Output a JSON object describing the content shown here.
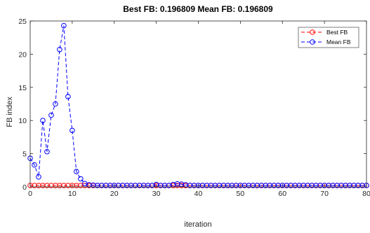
{
  "chart_data": {
    "type": "line",
    "title": "Best FB: 0.196809 Mean FB: 0.196809",
    "xlabel": "iteration",
    "ylabel": "FB index",
    "xlim": [
      0,
      80
    ],
    "ylim": [
      0,
      25
    ],
    "xticks": [
      0,
      10,
      20,
      30,
      40,
      50,
      60,
      70,
      80
    ],
    "yticks": [
      0,
      5,
      10,
      15,
      20,
      25
    ],
    "xtick_labels": [
      "0",
      "10",
      "20",
      "30",
      "40",
      "50",
      "60",
      "70",
      "80"
    ],
    "ytick_labels": [
      "0",
      "5",
      "10",
      "15",
      "20",
      "25"
    ],
    "grid": false,
    "legend_position": "top-right",
    "legend": [
      "Best FB",
      "Mean FB"
    ],
    "series": [
      {
        "name": "Best FB",
        "color": "#ff0000",
        "line_style": "dashed",
        "marker": "circle",
        "x": [
          0,
          1,
          2,
          3,
          4,
          5,
          6,
          7,
          8,
          9,
          10,
          11,
          12,
          13,
          14,
          15,
          16,
          17,
          18,
          19,
          20,
          21,
          22,
          23,
          24,
          25,
          26,
          27,
          28,
          29,
          30,
          31,
          32,
          33,
          34,
          35,
          36,
          37,
          38,
          39,
          40,
          41,
          42,
          43,
          44,
          45,
          46,
          47,
          48,
          49,
          50,
          51,
          52,
          53,
          54,
          55,
          56,
          57,
          58,
          59,
          60,
          61,
          62,
          63,
          64,
          65,
          66,
          67,
          68,
          69,
          70,
          71,
          72,
          73,
          74,
          75,
          76,
          77,
          78,
          79,
          80
        ],
        "y": [
          0.197,
          0.197,
          0.197,
          0.197,
          0.197,
          0.197,
          0.197,
          0.197,
          0.197,
          0.197,
          0.197,
          0.197,
          0.197,
          0.197,
          0.197,
          0.197,
          0.197,
          0.197,
          0.197,
          0.197,
          0.197,
          0.197,
          0.197,
          0.197,
          0.197,
          0.197,
          0.197,
          0.197,
          0.197,
          0.197,
          0.197,
          0.197,
          0.197,
          0.197,
          0.197,
          0.197,
          0.197,
          0.197,
          0.197,
          0.197,
          0.197,
          0.197,
          0.197,
          0.197,
          0.197,
          0.197,
          0.197,
          0.197,
          0.197,
          0.197,
          0.197,
          0.197,
          0.197,
          0.197,
          0.197,
          0.197,
          0.197,
          0.197,
          0.197,
          0.197,
          0.197,
          0.197,
          0.197,
          0.197,
          0.197,
          0.197,
          0.197,
          0.197,
          0.197,
          0.197,
          0.197,
          0.197,
          0.197,
          0.197,
          0.197,
          0.197,
          0.197,
          0.197,
          0.197,
          0.197,
          0.197
        ]
      },
      {
        "name": "Mean FB",
        "color": "#0000ff",
        "line_style": "dashed",
        "marker": "circle",
        "x": [
          0,
          1,
          2,
          3,
          4,
          5,
          6,
          7,
          8,
          9,
          10,
          11,
          12,
          13,
          14,
          15,
          16,
          17,
          18,
          19,
          20,
          21,
          22,
          23,
          24,
          25,
          26,
          27,
          28,
          29,
          30,
          31,
          32,
          33,
          34,
          35,
          36,
          37,
          38,
          39,
          40,
          41,
          42,
          43,
          44,
          45,
          46,
          47,
          48,
          49,
          50,
          51,
          52,
          53,
          54,
          55,
          56,
          57,
          58,
          59,
          60,
          61,
          62,
          63,
          64,
          65,
          66,
          67,
          68,
          69,
          70,
          71,
          72,
          73,
          74,
          75,
          76,
          77,
          78,
          79,
          80
        ],
        "y": [
          4.3,
          3.3,
          1.5,
          10.0,
          5.3,
          10.8,
          12.5,
          20.7,
          24.3,
          13.6,
          8.5,
          2.3,
          1.2,
          0.5,
          0.3,
          0.25,
          0.2,
          0.2,
          0.2,
          0.2,
          0.2,
          0.2,
          0.2,
          0.2,
          0.2,
          0.2,
          0.2,
          0.2,
          0.2,
          0.2,
          0.35,
          0.2,
          0.2,
          0.2,
          0.35,
          0.45,
          0.4,
          0.3,
          0.2,
          0.2,
          0.2,
          0.2,
          0.2,
          0.2,
          0.2,
          0.2,
          0.2,
          0.2,
          0.2,
          0.2,
          0.2,
          0.2,
          0.2,
          0.2,
          0.2,
          0.2,
          0.2,
          0.2,
          0.2,
          0.2,
          0.2,
          0.2,
          0.2,
          0.2,
          0.2,
          0.2,
          0.2,
          0.2,
          0.2,
          0.2,
          0.2,
          0.2,
          0.2,
          0.2,
          0.2,
          0.2,
          0.2,
          0.2,
          0.2,
          0.2,
          0.2
        ]
      }
    ]
  }
}
